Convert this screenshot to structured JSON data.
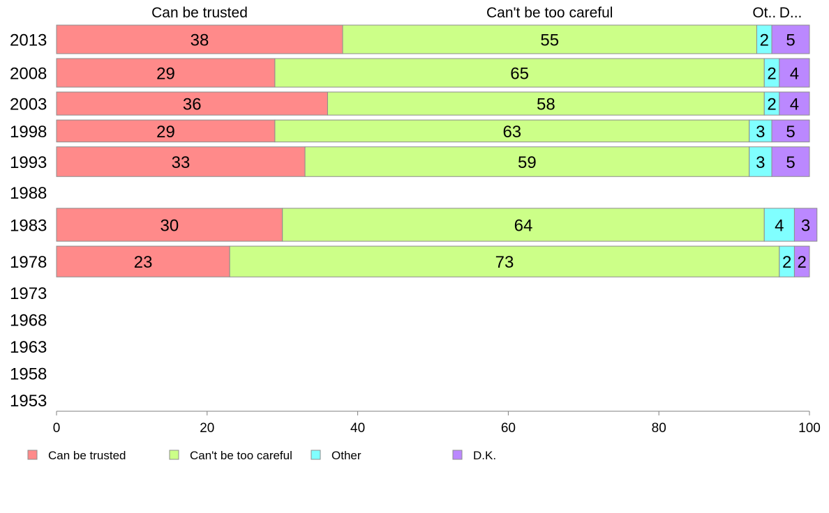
{
  "chart_data": {
    "type": "bar",
    "orientation": "horizontal",
    "stacked": true,
    "title": "",
    "xlabel": "",
    "ylabel": "",
    "xlim": [
      0,
      100
    ],
    "x_ticks": [
      0,
      20,
      40,
      60,
      80,
      100
    ],
    "grid": false,
    "legend_position": "bottom",
    "column_headers": [
      "Can be trusted",
      "Can't be too careful",
      "Ot..",
      "D..."
    ],
    "categories": [
      "2013",
      "2008",
      "2003",
      "1998",
      "1993",
      "1988",
      "1983",
      "1978",
      "1973",
      "1968",
      "1963",
      "1958",
      "1953"
    ],
    "bar_weights": [
      1.3,
      1.3,
      1.05,
      1.0,
      1.35,
      1.0,
      1.5,
      1.4,
      1.0,
      1.0,
      1.0,
      1.0,
      1.0
    ],
    "series": [
      {
        "name": "Can be trusted",
        "color": "#ff8a8a",
        "values": [
          38,
          29,
          36,
          29,
          33,
          null,
          30,
          23,
          null,
          null,
          null,
          null,
          null
        ]
      },
      {
        "name": "Can't be too careful",
        "color": "#ccff88",
        "values": [
          55,
          65,
          58,
          63,
          59,
          null,
          64,
          73,
          null,
          null,
          null,
          null,
          null
        ]
      },
      {
        "name": "Other",
        "color": "#80ffff",
        "values": [
          2,
          2,
          2,
          3,
          3,
          null,
          4,
          2,
          null,
          null,
          null,
          null,
          null
        ]
      },
      {
        "name": "D.K.",
        "color": "#bb88ff",
        "values": [
          5,
          4,
          4,
          5,
          5,
          null,
          3,
          2,
          null,
          null,
          null,
          null,
          null
        ]
      }
    ]
  }
}
